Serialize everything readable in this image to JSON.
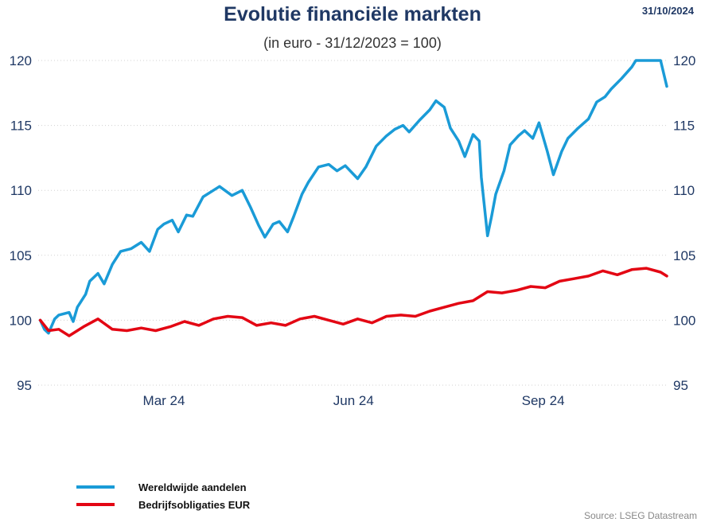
{
  "header": {
    "title": "Evolutie financiële markten",
    "subtitle": "(in euro - 31/12/2023 = 100)",
    "date": "31/10/2024"
  },
  "source": "Source: LSEG Datastream",
  "chart_data": {
    "type": "line",
    "title": "Evolutie financiële markten",
    "subtitle": "(in euro - 31/12/2023 = 100)",
    "ylim": [
      95,
      120
    ],
    "yticks": [
      95,
      100,
      105,
      110,
      115,
      120
    ],
    "x_range": [
      "2023-12-31",
      "2024-10-31"
    ],
    "xticks": [
      {
        "date": "2024-03-01",
        "label": "Mar 24"
      },
      {
        "date": "2024-06-01",
        "label": "Jun 24"
      },
      {
        "date": "2024-09-01",
        "label": "Sep 24"
      }
    ],
    "grid": "horizontal dotted",
    "legend_position": "bottom-left",
    "series": [
      {
        "name": "Wereldwijde aandelen",
        "color": "#1a9bd7",
        "points": [
          [
            "2024-01-01",
            100
          ],
          [
            "2024-01-03",
            99.3
          ],
          [
            "2024-01-05",
            99.0
          ],
          [
            "2024-01-08",
            100.1
          ],
          [
            "2024-01-10",
            100.4
          ],
          [
            "2024-01-15",
            100.6
          ],
          [
            "2024-01-17",
            99.9
          ],
          [
            "2024-01-19",
            101.0
          ],
          [
            "2024-01-23",
            102.0
          ],
          [
            "2024-01-25",
            103.0
          ],
          [
            "2024-01-29",
            103.6
          ],
          [
            "2024-02-01",
            102.8
          ],
          [
            "2024-02-05",
            104.3
          ],
          [
            "2024-02-09",
            105.3
          ],
          [
            "2024-02-14",
            105.5
          ],
          [
            "2024-02-19",
            106.0
          ],
          [
            "2024-02-23",
            105.3
          ],
          [
            "2024-02-27",
            107.0
          ],
          [
            "2024-03-01",
            107.4
          ],
          [
            "2024-03-05",
            107.7
          ],
          [
            "2024-03-08",
            106.8
          ],
          [
            "2024-03-12",
            108.1
          ],
          [
            "2024-03-15",
            108.0
          ],
          [
            "2024-03-20",
            109.5
          ],
          [
            "2024-03-25",
            110.0
          ],
          [
            "2024-03-28",
            110.3
          ],
          [
            "2024-04-03",
            109.6
          ],
          [
            "2024-04-08",
            110.0
          ],
          [
            "2024-04-12",
            108.7
          ],
          [
            "2024-04-16",
            107.3
          ],
          [
            "2024-04-19",
            106.4
          ],
          [
            "2024-04-23",
            107.4
          ],
          [
            "2024-04-26",
            107.6
          ],
          [
            "2024-04-30",
            106.8
          ],
          [
            "2024-05-03",
            108.0
          ],
          [
            "2024-05-07",
            109.7
          ],
          [
            "2024-05-10",
            110.6
          ],
          [
            "2024-05-15",
            111.8
          ],
          [
            "2024-05-20",
            112.0
          ],
          [
            "2024-05-24",
            111.5
          ],
          [
            "2024-05-28",
            111.9
          ],
          [
            "2024-06-03",
            110.9
          ],
          [
            "2024-06-07",
            111.8
          ],
          [
            "2024-06-12",
            113.4
          ],
          [
            "2024-06-17",
            114.2
          ],
          [
            "2024-06-21",
            114.7
          ],
          [
            "2024-06-25",
            115.0
          ],
          [
            "2024-06-28",
            114.5
          ],
          [
            "2024-07-03",
            115.4
          ],
          [
            "2024-07-08",
            116.2
          ],
          [
            "2024-07-11",
            116.9
          ],
          [
            "2024-07-15",
            116.4
          ],
          [
            "2024-07-18",
            114.8
          ],
          [
            "2024-07-22",
            113.8
          ],
          [
            "2024-07-25",
            112.6
          ],
          [
            "2024-07-29",
            114.3
          ],
          [
            "2024-08-01",
            113.8
          ],
          [
            "2024-08-02",
            111.0
          ],
          [
            "2024-08-05",
            106.5
          ],
          [
            "2024-08-07",
            108.0
          ],
          [
            "2024-08-09",
            109.7
          ],
          [
            "2024-08-13",
            111.5
          ],
          [
            "2024-08-16",
            113.5
          ],
          [
            "2024-08-20",
            114.2
          ],
          [
            "2024-08-23",
            114.6
          ],
          [
            "2024-08-27",
            114.0
          ],
          [
            "2024-08-30",
            115.2
          ],
          [
            "2024-09-03",
            113.0
          ],
          [
            "2024-09-06",
            111.2
          ],
          [
            "2024-09-10",
            113.0
          ],
          [
            "2024-09-13",
            114.0
          ],
          [
            "2024-09-18",
            114.8
          ],
          [
            "2024-09-23",
            115.5
          ],
          [
            "2024-09-27",
            116.8
          ],
          [
            "2024-10-01",
            117.2
          ],
          [
            "2024-10-04",
            117.8
          ],
          [
            "2024-10-09",
            118.6
          ],
          [
            "2024-10-14",
            119.5
          ],
          [
            "2024-10-16",
            120.3
          ],
          [
            "2024-10-28",
            120.0
          ],
          [
            "2024-10-31",
            118.0
          ]
        ]
      },
      {
        "name": "Bedrijfsobligaties EUR",
        "color": "#e30613",
        "points": [
          [
            "2024-01-01",
            100
          ],
          [
            "2024-01-05",
            99.2
          ],
          [
            "2024-01-10",
            99.3
          ],
          [
            "2024-01-15",
            98.8
          ],
          [
            "2024-01-22",
            99.5
          ],
          [
            "2024-01-29",
            100.1
          ],
          [
            "2024-02-05",
            99.3
          ],
          [
            "2024-02-12",
            99.2
          ],
          [
            "2024-02-19",
            99.4
          ],
          [
            "2024-02-26",
            99.2
          ],
          [
            "2024-03-04",
            99.5
          ],
          [
            "2024-03-11",
            99.9
          ],
          [
            "2024-03-18",
            99.6
          ],
          [
            "2024-03-25",
            100.1
          ],
          [
            "2024-04-01",
            100.3
          ],
          [
            "2024-04-08",
            100.2
          ],
          [
            "2024-04-15",
            99.6
          ],
          [
            "2024-04-22",
            99.8
          ],
          [
            "2024-04-29",
            99.6
          ],
          [
            "2024-05-06",
            100.1
          ],
          [
            "2024-05-13",
            100.3
          ],
          [
            "2024-05-20",
            100.0
          ],
          [
            "2024-05-27",
            99.7
          ],
          [
            "2024-06-03",
            100.1
          ],
          [
            "2024-06-10",
            99.8
          ],
          [
            "2024-06-17",
            100.3
          ],
          [
            "2024-06-24",
            100.4
          ],
          [
            "2024-07-01",
            100.3
          ],
          [
            "2024-07-08",
            100.7
          ],
          [
            "2024-07-15",
            101.0
          ],
          [
            "2024-07-22",
            101.3
          ],
          [
            "2024-07-29",
            101.5
          ],
          [
            "2024-08-05",
            102.2
          ],
          [
            "2024-08-12",
            102.1
          ],
          [
            "2024-08-19",
            102.3
          ],
          [
            "2024-08-26",
            102.6
          ],
          [
            "2024-09-02",
            102.5
          ],
          [
            "2024-09-09",
            103.0
          ],
          [
            "2024-09-16",
            103.2
          ],
          [
            "2024-09-23",
            103.4
          ],
          [
            "2024-09-30",
            103.8
          ],
          [
            "2024-10-07",
            103.5
          ],
          [
            "2024-10-14",
            103.9
          ],
          [
            "2024-10-21",
            104.0
          ],
          [
            "2024-10-28",
            103.7
          ],
          [
            "2024-10-31",
            103.4
          ]
        ]
      }
    ]
  }
}
